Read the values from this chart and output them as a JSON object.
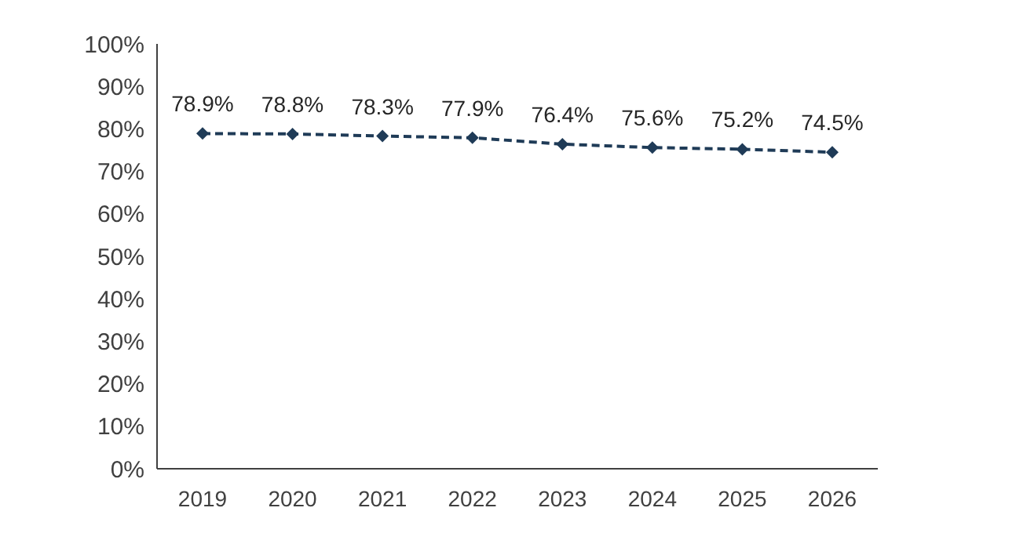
{
  "chart_data": {
    "type": "line",
    "categories": [
      "2019",
      "2020",
      "2021",
      "2022",
      "2023",
      "2024",
      "2025",
      "2026"
    ],
    "series": [
      {
        "color": "#1f3b57",
        "values": [
          78.9,
          78.8,
          78.3,
          77.9,
          76.4,
          75.6,
          75.2,
          74.5
        ],
        "value_labels": [
          "78.9%",
          "78.8%",
          "78.3%",
          "77.9%",
          "76.4%",
          "75.6%",
          "75.2%",
          "74.5%"
        ]
      }
    ],
    "ylim": [
      0,
      100
    ],
    "yticks": [
      {
        "value": 0,
        "label": "0%"
      },
      {
        "value": 10,
        "label": "10%"
      },
      {
        "value": 20,
        "label": "20%"
      },
      {
        "value": 30,
        "label": "30%"
      },
      {
        "value": 40,
        "label": "40%"
      },
      {
        "value": 50,
        "label": "50%"
      },
      {
        "value": 60,
        "label": "60%"
      },
      {
        "value": 70,
        "label": "70%"
      },
      {
        "value": 80,
        "label": "80%"
      },
      {
        "value": 90,
        "label": "90%"
      },
      {
        "value": 100,
        "label": "100%"
      }
    ],
    "grid": false,
    "legend": false,
    "marker": "diamond",
    "line_style": "dashed"
  }
}
